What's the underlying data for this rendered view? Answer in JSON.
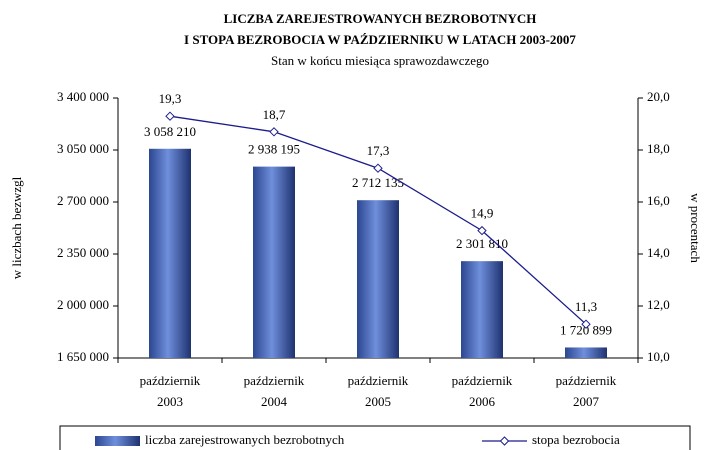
{
  "chart_data": {
    "type": "bar_line",
    "title": [
      "LICZBA ZAREJESTROWANYCH BEZROBOTNYCH",
      "I STOPA  BEZROBOCIA  W  PAŹDZIERNIKU  W  LATACH  2003-2007"
    ],
    "subtitle": "Stan w końcu miesiąca sprawozdawczego",
    "ylabel": "w liczbach bezwzgl",
    "y2label": "w procentach",
    "categories": [
      [
        "październik",
        "2003"
      ],
      [
        "październik",
        "2004"
      ],
      [
        "październik",
        "2005"
      ],
      [
        "październik",
        "2006"
      ],
      [
        "październik",
        "2007"
      ]
    ],
    "series": [
      {
        "name": "liczba zarejestrowanych bezrobotnych",
        "type": "bar",
        "color": "#6f8fdc",
        "axis": "y",
        "values": [
          3058210,
          2938195,
          2712135,
          2301810,
          1720899
        ],
        "value_labels": [
          "3 058 210",
          "2 938 195",
          "2 712 135",
          "2 301 810",
          "1 720 899"
        ]
      },
      {
        "name": "stopa bezrobocia",
        "type": "line",
        "color": "#1c1c8c",
        "axis": "y2",
        "values": [
          19.3,
          18.7,
          17.3,
          14.9,
          11.3
        ],
        "value_labels": [
          "19,3",
          "18,7",
          "17,3",
          "14,9",
          "11,3"
        ]
      }
    ],
    "ylim": [
      1650000,
      3400000
    ],
    "yticks": [
      {
        "value": 1650000,
        "label": "1 650 000"
      },
      {
        "value": 2000000,
        "label": "2 000 000"
      },
      {
        "value": 2350000,
        "label": "2 350 000"
      },
      {
        "value": 2700000,
        "label": "2 700 000"
      },
      {
        "value": 3050000,
        "label": "3 050 000"
      },
      {
        "value": 3400000,
        "label": "3 400 000"
      }
    ],
    "y2lim": [
      10,
      20
    ],
    "y2ticks": [
      {
        "value": 10,
        "label": "10,0"
      },
      {
        "value": 12,
        "label": "12,0"
      },
      {
        "value": 14,
        "label": "14,0"
      },
      {
        "value": 16,
        "label": "16,0"
      },
      {
        "value": 18,
        "label": "18,0"
      },
      {
        "value": 20,
        "label": "20,0"
      }
    ],
    "legend": "bottom"
  }
}
